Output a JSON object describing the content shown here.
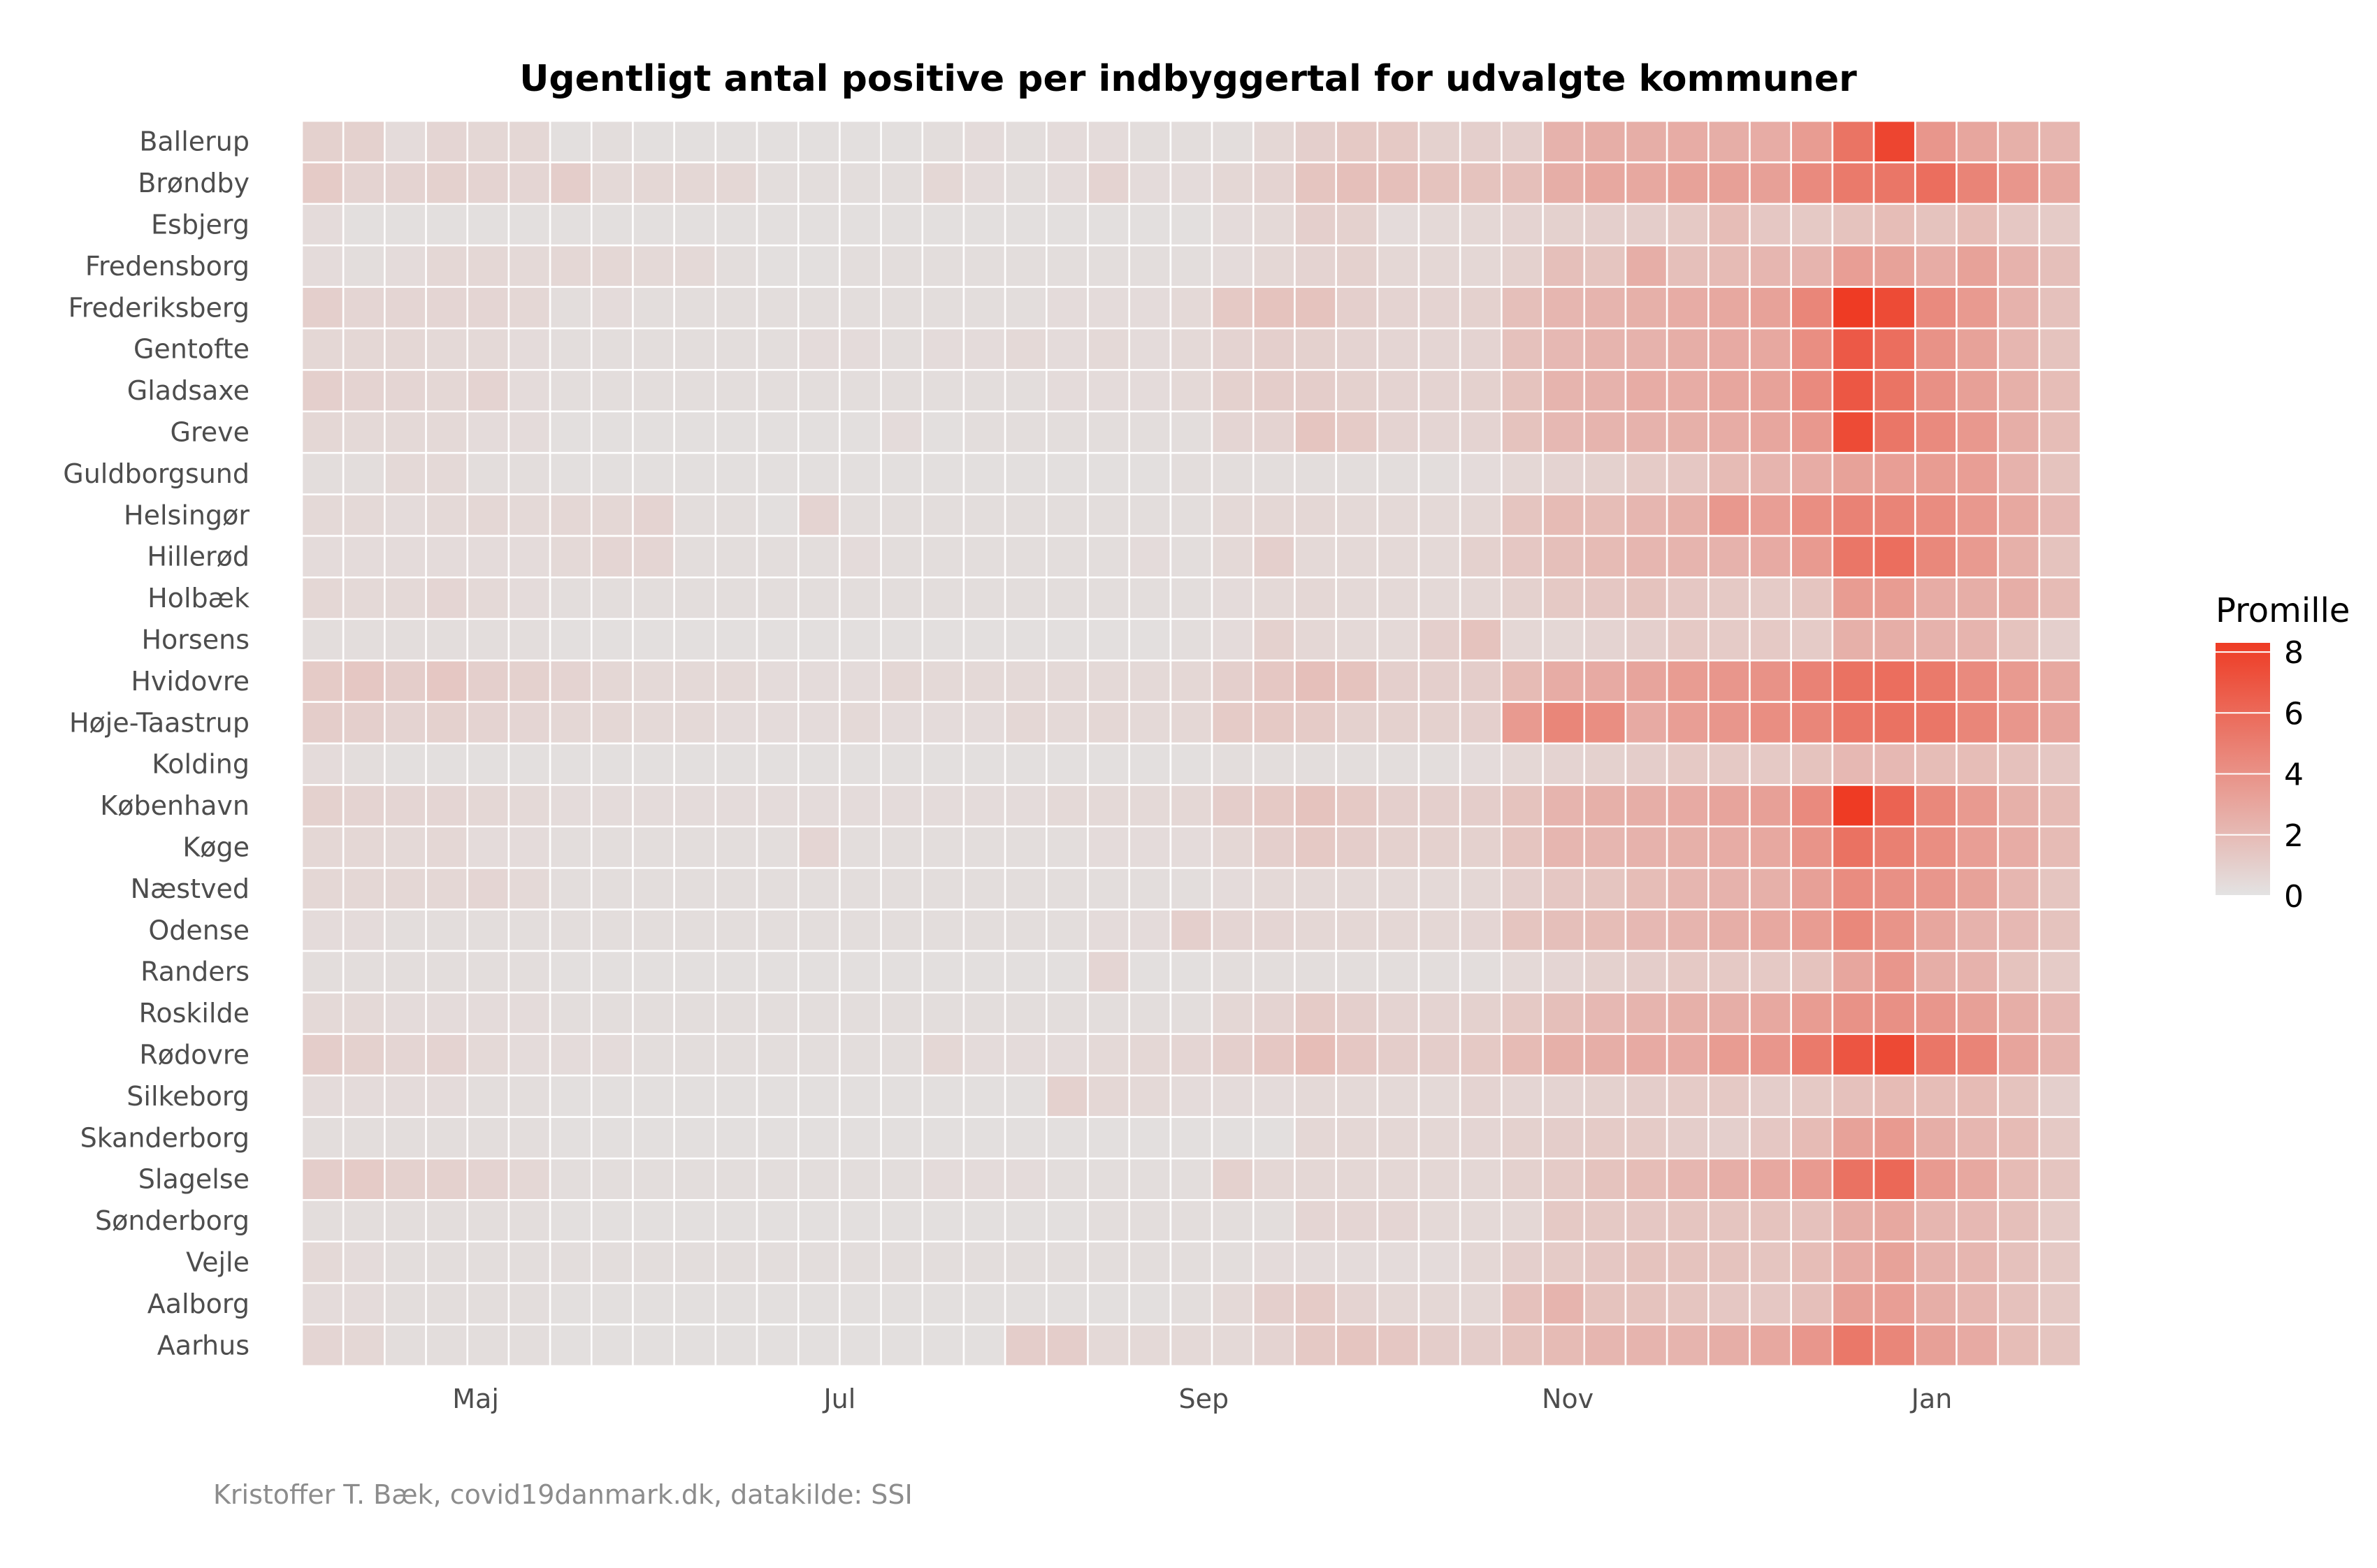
{
  "chart_data": {
    "type": "heatmap",
    "title": "Ugentligt antal positive per indbyggertal for udvalgte kommuner",
    "caption": "Kristoffer T. Bæk, covid19danmark.dk, datakilde: SSI",
    "x_tick_labels": [
      {
        "label": "Maj",
        "week_index": 4.2
      },
      {
        "label": "Jul",
        "week_index": 13
      },
      {
        "label": "Sep",
        "week_index": 21.8
      },
      {
        "label": "Nov",
        "week_index": 30.6
      },
      {
        "label": "Jan",
        "week_index": 39.4
      }
    ],
    "week_count": 43,
    "legend": {
      "title": "Promille",
      "ticks": [
        "0",
        "2",
        "4",
        "6",
        "8"
      ],
      "min": 0,
      "max": 8.3,
      "position": "right"
    },
    "colors": {
      "low": "#e3e3e3",
      "high": "#ee3b24",
      "grid": "#ffffff"
    },
    "municipalities": [
      "Ballerup",
      "Brøndby",
      "Esbjerg",
      "Fredensborg",
      "Frederiksberg",
      "Gentofte",
      "Gladsaxe",
      "Greve",
      "Guldborgsund",
      "Helsingør",
      "Hillerød",
      "Holbæk",
      "Horsens",
      "Hvidovre",
      "Høje-Taastrup",
      "Kolding",
      "København",
      "Køge",
      "Næstved",
      "Odense",
      "Randers",
      "Roskilde",
      "Rødovre",
      "Silkeborg",
      "Skanderborg",
      "Slagelse",
      "Sønderborg",
      "Vejle",
      "Aalborg",
      "Aarhus"
    ],
    "values": [
      [
        0.9,
        0.9,
        0.4,
        0.7,
        0.6,
        0.6,
        0.2,
        0.3,
        0.2,
        0.2,
        0.2,
        0.2,
        0.2,
        0.2,
        0.2,
        0.3,
        0.4,
        0.3,
        0.4,
        0.4,
        0.3,
        0.3,
        0.3,
        0.6,
        1.0,
        1.3,
        1.3,
        0.9,
        1.0,
        1.0,
        2.4,
        2.6,
        2.6,
        2.7,
        2.6,
        2.7,
        3.5,
        5.5,
        7.8,
        3.8,
        3.0,
        2.5,
        2.2
      ],
      [
        1.2,
        0.8,
        0.8,
        0.9,
        0.8,
        0.7,
        1.1,
        0.5,
        0.6,
        0.6,
        0.6,
        0.3,
        0.3,
        0.3,
        0.3,
        0.6,
        0.4,
        0.3,
        0.4,
        0.8,
        0.4,
        0.4,
        0.6,
        0.8,
        1.5,
        1.8,
        1.8,
        1.6,
        1.6,
        1.8,
        2.6,
        2.9,
        2.9,
        3.2,
        3.3,
        3.3,
        4.4,
        5.2,
        5.4,
        5.8,
        4.7,
        3.8,
        2.9
      ],
      [
        0.4,
        0.2,
        0.2,
        0.2,
        0.2,
        0.2,
        0.2,
        0.2,
        0.2,
        0.2,
        0.2,
        0.2,
        0.2,
        0.2,
        0.2,
        0.2,
        0.2,
        0.2,
        0.2,
        0.2,
        0.2,
        0.2,
        0.4,
        0.5,
        1.0,
        0.9,
        0.4,
        0.5,
        0.6,
        0.8,
        0.9,
        1.0,
        1.1,
        1.3,
        1.9,
        1.4,
        1.3,
        1.6,
        1.9,
        1.6,
        1.9,
        1.4,
        1.2
      ],
      [
        0.4,
        0.3,
        0.4,
        0.6,
        0.6,
        0.5,
        0.6,
        0.6,
        0.5,
        0.5,
        0.3,
        0.2,
        0.2,
        0.3,
        0.3,
        0.3,
        0.3,
        0.3,
        0.3,
        0.3,
        0.3,
        0.3,
        0.4,
        0.6,
        0.8,
        0.9,
        0.6,
        0.6,
        0.6,
        0.9,
        1.8,
        1.5,
        2.6,
        1.8,
        2.0,
        2.2,
        2.3,
        3.4,
        3.2,
        2.7,
        3.2,
        2.4,
        1.8
      ],
      [
        1.0,
        0.7,
        0.7,
        0.7,
        0.7,
        0.6,
        0.3,
        0.4,
        0.3,
        0.3,
        0.3,
        0.3,
        0.3,
        0.3,
        0.3,
        0.3,
        0.3,
        0.3,
        0.4,
        0.4,
        0.4,
        0.5,
        1.3,
        1.6,
        1.6,
        1.0,
        0.8,
        0.8,
        0.9,
        1.8,
        2.2,
        2.3,
        2.5,
        2.7,
        2.9,
        3.2,
        4.6,
        8.3,
        7.5,
        4.4,
        3.6,
        2.4,
        1.7
      ],
      [
        0.6,
        0.6,
        0.6,
        0.5,
        0.5,
        0.4,
        0.3,
        0.3,
        0.3,
        0.3,
        0.3,
        0.3,
        0.4,
        0.4,
        0.3,
        0.4,
        0.4,
        0.5,
        0.4,
        0.5,
        0.4,
        0.5,
        0.8,
        1.0,
        0.9,
        0.8,
        0.7,
        0.7,
        0.8,
        1.7,
        2.1,
        2.3,
        2.4,
        2.6,
        2.8,
        2.9,
        4.2,
        6.8,
        5.8,
        4.0,
        3.2,
        2.2,
        1.6
      ],
      [
        1.0,
        0.8,
        0.7,
        0.6,
        0.8,
        0.4,
        0.3,
        0.3,
        0.3,
        0.3,
        0.3,
        0.3,
        0.3,
        0.3,
        0.3,
        0.3,
        0.3,
        0.3,
        0.4,
        0.4,
        0.4,
        0.5,
        0.9,
        1.1,
        1.1,
        0.9,
        0.8,
        0.8,
        0.9,
        1.6,
        2.3,
        2.4,
        2.7,
        2.7,
        3.0,
        3.2,
        4.4,
        6.9,
        5.5,
        4.1,
        3.3,
        2.5,
        1.9
      ],
      [
        0.6,
        0.5,
        0.5,
        0.5,
        0.4,
        0.4,
        0.2,
        0.2,
        0.2,
        0.2,
        0.2,
        0.2,
        0.2,
        0.2,
        0.4,
        0.2,
        0.3,
        0.3,
        0.3,
        0.3,
        0.3,
        0.3,
        0.7,
        0.8,
        1.5,
        1.2,
        0.8,
        0.7,
        0.8,
        1.6,
        2.1,
        2.3,
        2.4,
        2.5,
        2.7,
        3.0,
        3.7,
        7.5,
        5.4,
        4.4,
        3.7,
        2.6,
        1.9
      ],
      [
        0.3,
        0.3,
        0.5,
        0.5,
        0.3,
        0.3,
        0.2,
        0.2,
        0.2,
        0.2,
        0.2,
        0.2,
        0.2,
        0.2,
        0.2,
        0.2,
        0.2,
        0.2,
        0.2,
        0.2,
        0.2,
        0.3,
        0.3,
        0.3,
        0.3,
        0.3,
        0.3,
        0.3,
        0.4,
        0.6,
        0.8,
        0.9,
        1.2,
        1.4,
        2.0,
        2.3,
        2.7,
        3.2,
        3.4,
        3.5,
        3.4,
        2.4,
        1.6
      ],
      [
        0.5,
        0.5,
        0.4,
        0.5,
        0.6,
        0.5,
        0.6,
        0.6,
        0.8,
        0.3,
        0.3,
        0.2,
        0.8,
        0.3,
        0.3,
        0.3,
        0.3,
        0.3,
        0.3,
        0.3,
        0.3,
        0.3,
        0.5,
        0.6,
        0.6,
        0.5,
        0.5,
        0.5,
        0.6,
        1.5,
        2.0,
        1.9,
        2.2,
        2.5,
        3.7,
        3.4,
        4.2,
        4.8,
        4.7,
        4.3,
        3.7,
        2.9,
        2.1
      ],
      [
        0.4,
        0.4,
        0.4,
        0.4,
        0.4,
        0.4,
        0.5,
        0.7,
        0.7,
        0.3,
        0.3,
        0.3,
        0.3,
        0.4,
        0.3,
        0.3,
        0.3,
        0.3,
        0.3,
        0.3,
        0.4,
        0.3,
        0.5,
        1.0,
        0.5,
        0.5,
        0.5,
        0.5,
        0.9,
        1.4,
        1.8,
        2.0,
        2.2,
        2.3,
        2.4,
        2.8,
        3.6,
        5.4,
        5.8,
        4.5,
        3.6,
        2.5,
        1.6
      ],
      [
        0.6,
        0.5,
        0.5,
        0.7,
        0.5,
        0.4,
        0.3,
        0.3,
        0.3,
        0.3,
        0.3,
        0.3,
        0.3,
        0.3,
        0.3,
        0.3,
        0.3,
        0.3,
        0.3,
        0.3,
        0.3,
        0.3,
        0.4,
        0.5,
        0.6,
        0.5,
        0.5,
        0.5,
        0.6,
        0.9,
        1.3,
        1.4,
        1.6,
        1.4,
        1.3,
        1.2,
        1.5,
        3.5,
        3.5,
        2.7,
        2.6,
        2.6,
        2.0
      ],
      [
        0.3,
        0.3,
        0.3,
        0.3,
        0.3,
        0.3,
        0.2,
        0.2,
        0.2,
        0.2,
        0.2,
        0.2,
        0.2,
        0.2,
        0.2,
        0.2,
        0.2,
        0.2,
        0.2,
        0.2,
        0.2,
        0.3,
        0.4,
        0.9,
        0.6,
        0.5,
        0.5,
        1.0,
        1.6,
        0.6,
        0.6,
        0.8,
        1.0,
        1.3,
        1.2,
        1.3,
        1.2,
        2.5,
        2.6,
        2.4,
        2.3,
        1.6,
        1.0
      ],
      [
        1.2,
        1.4,
        1.1,
        1.4,
        1.0,
        0.9,
        0.8,
        0.6,
        0.5,
        0.5,
        0.5,
        0.4,
        0.4,
        0.4,
        0.6,
        0.5,
        0.5,
        0.5,
        0.5,
        0.5,
        0.5,
        0.6,
        1.0,
        1.4,
        1.8,
        1.6,
        1.0,
        1.0,
        1.1,
        2.0,
        2.7,
        2.8,
        3.1,
        3.5,
        3.8,
        4.0,
        4.8,
        5.6,
        5.8,
        5.2,
        4.4,
        3.6,
        2.9
      ],
      [
        1.1,
        1.0,
        0.8,
        0.9,
        0.8,
        0.7,
        0.6,
        0.6,
        0.5,
        0.5,
        0.4,
        0.4,
        0.4,
        0.5,
        0.4,
        0.4,
        0.4,
        0.6,
        0.5,
        0.6,
        0.5,
        0.6,
        1.2,
        1.3,
        1.2,
        0.9,
        0.9,
        0.9,
        1.0,
        3.6,
        4.6,
        4.2,
        2.8,
        3.4,
        3.8,
        4.2,
        4.6,
        5.4,
        5.6,
        5.4,
        4.6,
        3.8,
        3.1
      ],
      [
        0.4,
        0.3,
        0.2,
        0.2,
        0.2,
        0.2,
        0.2,
        0.2,
        0.2,
        0.2,
        0.2,
        0.2,
        0.2,
        0.2,
        0.2,
        0.2,
        0.2,
        0.2,
        0.2,
        0.2,
        0.2,
        0.2,
        0.3,
        0.3,
        0.3,
        0.3,
        0.3,
        0.3,
        0.4,
        0.6,
        0.8,
        0.9,
        1.1,
        1.3,
        1.3,
        1.3,
        1.6,
        2.1,
        2.1,
        1.9,
        1.9,
        1.7,
        1.4
      ],
      [
        0.9,
        0.8,
        0.7,
        0.7,
        0.6,
        0.5,
        0.4,
        0.4,
        0.4,
        0.4,
        0.4,
        0.4,
        0.4,
        0.4,
        0.4,
        0.4,
        0.4,
        0.4,
        0.5,
        0.5,
        0.5,
        0.6,
        1.1,
        1.3,
        1.6,
        1.3,
        1.0,
        1.0,
        1.1,
        1.6,
        2.3,
        2.5,
        2.6,
        2.8,
        3.1,
        3.3,
        4.4,
        8.3,
        6.3,
        4.5,
        3.6,
        2.5,
        2.0
      ],
      [
        0.6,
        0.6,
        0.5,
        0.6,
        0.4,
        0.4,
        0.3,
        0.3,
        0.3,
        0.3,
        0.3,
        0.3,
        0.7,
        0.3,
        0.3,
        0.3,
        0.3,
        0.3,
        0.3,
        0.4,
        0.4,
        0.4,
        0.6,
        1.0,
        1.3,
        1.1,
        0.9,
        0.9,
        0.9,
        1.5,
        2.2,
        2.2,
        2.4,
        2.5,
        2.7,
        2.9,
        3.9,
        5.6,
        4.9,
        4.2,
        3.4,
        2.7,
        2.0
      ],
      [
        0.6,
        0.6,
        0.6,
        0.6,
        0.7,
        0.5,
        0.3,
        0.3,
        0.3,
        0.3,
        0.3,
        0.3,
        0.3,
        0.3,
        0.3,
        0.3,
        0.3,
        0.3,
        0.3,
        0.3,
        0.3,
        0.3,
        0.4,
        0.5,
        0.5,
        0.5,
        0.5,
        0.5,
        0.6,
        1.0,
        1.4,
        1.5,
        1.9,
        2.2,
        2.4,
        2.5,
        3.3,
        4.3,
        4.1,
        3.8,
        3.2,
        2.2,
        1.5
      ],
      [
        0.4,
        0.4,
        0.3,
        0.3,
        0.3,
        0.3,
        0.3,
        0.3,
        0.3,
        0.3,
        0.3,
        0.3,
        0.3,
        0.3,
        0.3,
        0.3,
        0.3,
        0.3,
        0.3,
        0.4,
        0.4,
        1.0,
        0.7,
        0.7,
        0.6,
        0.6,
        0.6,
        0.6,
        0.7,
        1.5,
        1.8,
        1.9,
        2.1,
        2.3,
        2.6,
        2.9,
        3.5,
        4.5,
        3.9,
        3.0,
        2.4,
        2.1,
        1.6
      ],
      [
        0.3,
        0.3,
        0.3,
        0.3,
        0.3,
        0.3,
        0.2,
        0.2,
        0.2,
        0.2,
        0.2,
        0.2,
        0.2,
        0.2,
        0.2,
        0.2,
        0.2,
        0.2,
        0.2,
        0.7,
        0.2,
        0.2,
        0.3,
        0.3,
        0.3,
        0.3,
        0.3,
        0.3,
        0.3,
        0.5,
        0.7,
        0.9,
        1.1,
        1.3,
        1.3,
        1.3,
        1.6,
        3.0,
        3.8,
        2.6,
        2.4,
        1.6,
        1.2
      ],
      [
        0.5,
        0.5,
        0.4,
        0.4,
        0.4,
        0.4,
        0.3,
        0.3,
        0.3,
        0.3,
        0.3,
        0.3,
        0.3,
        0.3,
        0.3,
        0.3,
        0.3,
        0.3,
        0.3,
        0.3,
        0.3,
        0.3,
        0.6,
        0.8,
        1.2,
        1.0,
        0.8,
        0.8,
        0.9,
        1.3,
        1.8,
        2.1,
        2.3,
        2.5,
        2.6,
        2.9,
        3.5,
        4.0,
        4.1,
        3.8,
        3.3,
        2.6,
        2.1
      ],
      [
        1.1,
        0.9,
        0.7,
        0.8,
        0.5,
        0.4,
        0.4,
        0.4,
        0.3,
        0.3,
        0.3,
        0.3,
        0.3,
        0.3,
        0.3,
        0.6,
        0.4,
        0.4,
        0.4,
        0.5,
        0.6,
        0.7,
        1.0,
        1.4,
        1.9,
        1.4,
        1.1,
        1.1,
        1.3,
        2.0,
        2.5,
        2.6,
        2.8,
        2.8,
        3.5,
        3.8,
        5.2,
        7.0,
        7.6,
        5.4,
        4.7,
        3.1,
        2.3
      ],
      [
        0.4,
        0.4,
        0.4,
        0.4,
        0.3,
        0.3,
        0.2,
        0.2,
        0.2,
        0.2,
        0.2,
        0.2,
        0.2,
        0.2,
        0.2,
        0.2,
        0.2,
        0.2,
        0.9,
        0.6,
        0.5,
        0.4,
        0.4,
        0.4,
        0.5,
        0.5,
        0.5,
        0.5,
        0.8,
        0.7,
        0.8,
        0.9,
        1.1,
        1.2,
        1.3,
        1.1,
        1.3,
        1.7,
        2.0,
        1.9,
        2.0,
        1.6,
        1.0
      ],
      [
        0.3,
        0.3,
        0.3,
        0.3,
        0.3,
        0.3,
        0.2,
        0.2,
        0.2,
        0.2,
        0.2,
        0.2,
        0.2,
        0.2,
        0.2,
        0.2,
        0.2,
        0.2,
        0.2,
        0.2,
        0.2,
        0.2,
        0.2,
        0.2,
        0.6,
        0.6,
        0.6,
        0.6,
        0.7,
        0.9,
        1.1,
        1.2,
        1.2,
        1.1,
        1.0,
        1.4,
        2.0,
        3.2,
        3.6,
        2.6,
        2.2,
        2.0,
        1.3
      ],
      [
        1.1,
        1.2,
        0.9,
        0.9,
        0.8,
        0.6,
        0.3,
        0.3,
        0.3,
        0.3,
        0.3,
        0.3,
        0.3,
        0.3,
        0.3,
        0.4,
        0.4,
        0.4,
        0.3,
        0.3,
        0.3,
        0.3,
        0.9,
        0.6,
        0.6,
        0.6,
        0.6,
        0.6,
        0.6,
        0.9,
        1.2,
        1.6,
        1.9,
        2.2,
        2.6,
        2.9,
        3.6,
        5.6,
        6.1,
        3.6,
        2.9,
        2.0,
        1.5
      ],
      [
        0.3,
        0.3,
        0.3,
        0.3,
        0.3,
        0.3,
        0.2,
        0.2,
        0.2,
        0.2,
        0.2,
        0.2,
        0.2,
        0.2,
        0.2,
        0.2,
        0.2,
        0.2,
        0.2,
        0.3,
        0.3,
        0.3,
        0.3,
        0.3,
        0.7,
        0.7,
        0.7,
        0.5,
        0.5,
        0.6,
        1.3,
        1.3,
        1.4,
        1.5,
        1.5,
        1.6,
        1.7,
        2.6,
        2.9,
        2.2,
        2.1,
        1.8,
        1.2
      ],
      [
        0.5,
        0.4,
        0.3,
        0.3,
        0.3,
        0.3,
        0.3,
        0.3,
        0.3,
        0.3,
        0.3,
        0.3,
        0.3,
        0.3,
        0.3,
        0.3,
        0.3,
        0.3,
        0.3,
        0.3,
        0.3,
        0.3,
        0.3,
        0.4,
        0.4,
        0.4,
        0.4,
        0.4,
        0.6,
        1.0,
        1.2,
        1.4,
        1.6,
        1.6,
        1.6,
        1.5,
        1.9,
        2.7,
        3.2,
        2.4,
        2.2,
        1.7,
        1.3
      ],
      [
        0.4,
        0.4,
        0.3,
        0.3,
        0.3,
        0.3,
        0.2,
        0.2,
        0.2,
        0.2,
        0.2,
        0.2,
        0.2,
        0.2,
        0.2,
        0.2,
        0.2,
        0.2,
        0.2,
        0.2,
        0.2,
        0.3,
        0.5,
        1.0,
        1.2,
        0.8,
        0.6,
        0.6,
        0.6,
        1.7,
        2.3,
        1.6,
        1.6,
        1.5,
        1.4,
        1.4,
        1.8,
        3.3,
        3.4,
        2.6,
        2.2,
        1.7,
        1.3
      ],
      [
        0.7,
        0.6,
        0.3,
        0.3,
        0.3,
        0.3,
        0.2,
        0.2,
        0.2,
        0.2,
        0.2,
        0.2,
        0.2,
        0.2,
        0.2,
        0.2,
        0.2,
        1.1,
        1.1,
        0.5,
        0.5,
        0.5,
        0.5,
        0.8,
        1.3,
        1.5,
        1.4,
        1.1,
        1.1,
        1.6,
        2.0,
        2.2,
        2.3,
        2.3,
        2.6,
        2.9,
        3.8,
        5.3,
        4.6,
        3.3,
        2.8,
        1.9,
        1.5
      ]
    ]
  }
}
